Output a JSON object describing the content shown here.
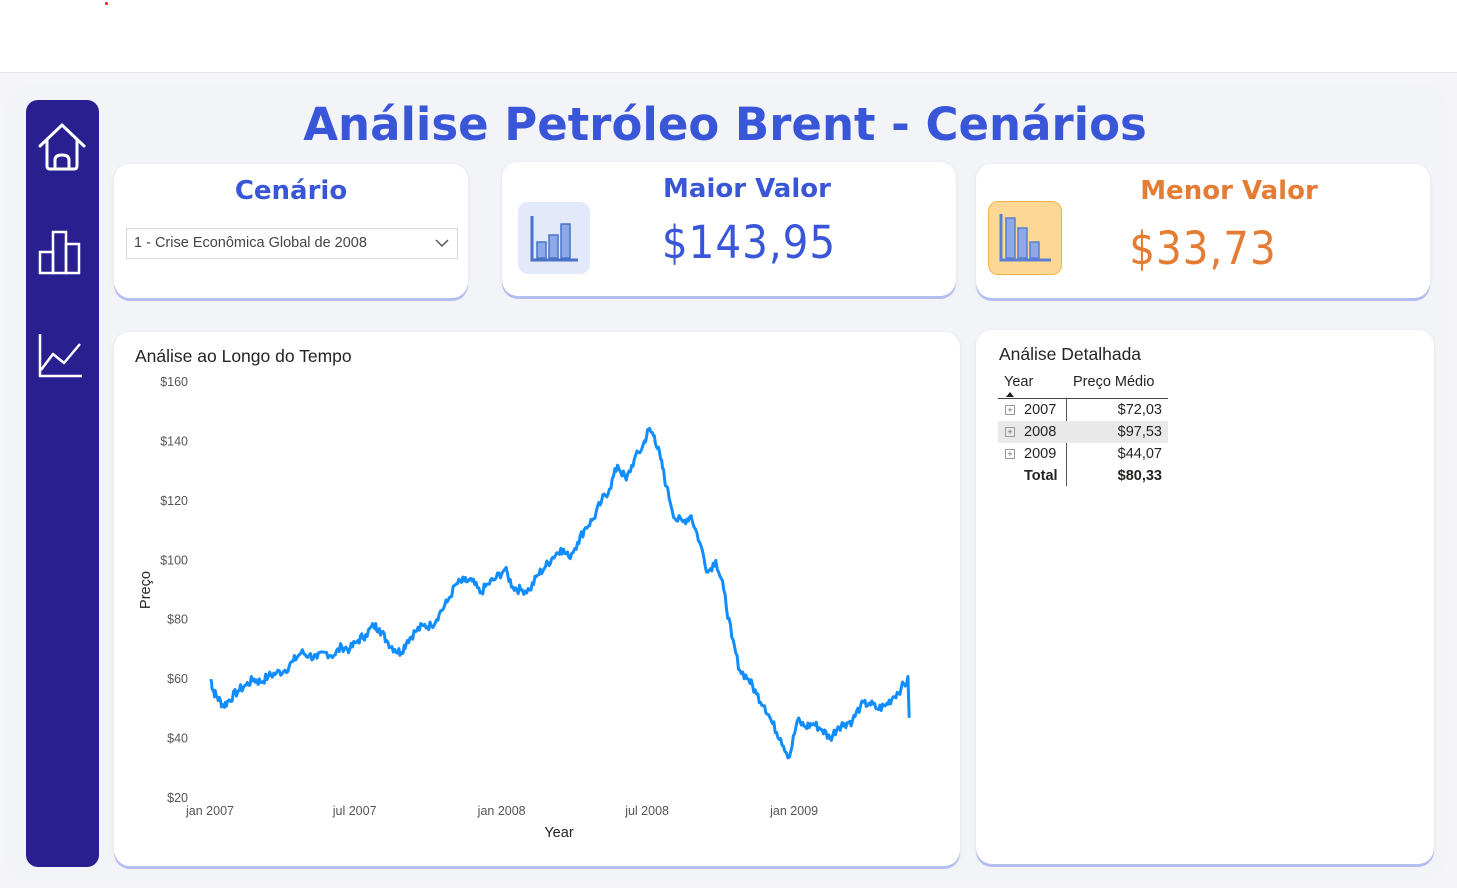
{
  "title": "Análise Petróleo Brent - Cenários",
  "colors": {
    "accent": "#3a56d8",
    "sidebar": "#2a1f8f",
    "orange": "#e57c34",
    "line": "#118dff"
  },
  "nav": {
    "items": [
      {
        "name": "home-icon"
      },
      {
        "name": "bar-chart-icon"
      },
      {
        "name": "line-chart-icon"
      }
    ]
  },
  "scenario": {
    "label": "Cenário",
    "selected": "1 - Crise Econômica Global de 2008"
  },
  "max_value": {
    "label": "Maior Valor",
    "value": "$143,95",
    "icon": "bar-chart-icon"
  },
  "min_value": {
    "label": "Menor Valor",
    "value": "$33,73",
    "icon": "bar-chart-icon"
  },
  "line_panel": {
    "title": "Análise ao Longo do Tempo"
  },
  "table_panel": {
    "title": "Análise Detalhada",
    "headers": {
      "year": "Year",
      "price": "Preço Médio"
    },
    "rows": [
      {
        "year": "2007",
        "value": "$72,03"
      },
      {
        "year": "2008",
        "value": "$97,53"
      },
      {
        "year": "2009",
        "value": "$44,07"
      }
    ],
    "total": {
      "label": "Total",
      "value": "$80,33"
    }
  },
  "chart_data": {
    "type": "line",
    "title": "Análise ao Longo do Tempo",
    "xlabel": "Year",
    "ylabel": "Preço",
    "y_ticks": [
      "$160",
      "$140",
      "$120",
      "$100",
      "$80",
      "$60",
      "$40",
      "$20"
    ],
    "x_ticks": [
      "jan 2007",
      "jul 2007",
      "jan 2008",
      "jul 2008",
      "jan 2009"
    ],
    "ylim": [
      20,
      160
    ],
    "x_range": [
      "2007-01-01",
      "2009-05-31"
    ],
    "series": [
      {
        "values": [
          [
            "2007-01-02",
            60
          ],
          [
            "2007-01-05",
            56
          ],
          [
            "2007-01-10",
            54
          ],
          [
            "2007-01-18",
            51
          ],
          [
            "2007-01-25",
            53
          ],
          [
            "2007-02-05",
            56
          ],
          [
            "2007-02-15",
            58
          ],
          [
            "2007-02-25",
            60
          ],
          [
            "2007-03-05",
            59
          ],
          [
            "2007-03-15",
            61
          ],
          [
            "2007-03-25",
            62
          ],
          [
            "2007-04-05",
            63
          ],
          [
            "2007-04-15",
            66
          ],
          [
            "2007-04-25",
            69
          ],
          [
            "2007-05-05",
            68
          ],
          [
            "2007-05-15",
            67
          ],
          [
            "2007-05-25",
            69
          ],
          [
            "2007-06-05",
            68
          ],
          [
            "2007-06-15",
            71
          ],
          [
            "2007-06-25",
            70
          ],
          [
            "2007-07-05",
            73
          ],
          [
            "2007-07-15",
            75
          ],
          [
            "2007-07-25",
            78
          ],
          [
            "2007-08-01",
            77
          ],
          [
            "2007-08-10",
            73
          ],
          [
            "2007-08-20",
            70
          ],
          [
            "2007-08-28",
            69
          ],
          [
            "2007-09-05",
            73
          ],
          [
            "2007-09-15",
            76
          ],
          [
            "2007-09-25",
            78
          ],
          [
            "2007-10-05",
            78
          ],
          [
            "2007-10-15",
            82
          ],
          [
            "2007-10-25",
            86
          ],
          [
            "2007-11-05",
            92
          ],
          [
            "2007-11-15",
            93
          ],
          [
            "2007-11-25",
            93
          ],
          [
            "2007-12-05",
            89
          ],
          [
            "2007-12-15",
            92
          ],
          [
            "2007-12-25",
            94
          ],
          [
            "2008-01-05",
            97
          ],
          [
            "2008-01-15",
            91
          ],
          [
            "2008-01-25",
            90
          ],
          [
            "2008-02-05",
            90
          ],
          [
            "2008-02-15",
            95
          ],
          [
            "2008-02-25",
            98
          ],
          [
            "2008-03-05",
            101
          ],
          [
            "2008-03-15",
            104
          ],
          [
            "2008-03-25",
            101
          ],
          [
            "2008-04-05",
            106
          ],
          [
            "2008-04-15",
            111
          ],
          [
            "2008-04-25",
            114
          ],
          [
            "2008-05-05",
            120
          ],
          [
            "2008-05-15",
            124
          ],
          [
            "2008-05-25",
            132
          ],
          [
            "2008-06-05",
            127
          ],
          [
            "2008-06-15",
            134
          ],
          [
            "2008-06-25",
            138
          ],
          [
            "2008-07-03",
            143.95
          ],
          [
            "2008-07-10",
            142
          ],
          [
            "2008-07-18",
            134
          ],
          [
            "2008-07-25",
            125
          ],
          [
            "2008-08-05",
            114
          ],
          [
            "2008-08-15",
            113
          ],
          [
            "2008-08-25",
            115
          ],
          [
            "2008-09-05",
            106
          ],
          [
            "2008-09-15",
            96
          ],
          [
            "2008-09-25",
            100
          ],
          [
            "2008-10-05",
            90
          ],
          [
            "2008-10-15",
            74
          ],
          [
            "2008-10-25",
            63
          ],
          [
            "2008-11-05",
            60
          ],
          [
            "2008-11-15",
            55
          ],
          [
            "2008-11-25",
            51
          ],
          [
            "2008-12-05",
            45
          ],
          [
            "2008-12-15",
            40
          ],
          [
            "2008-12-26",
            33.73
          ],
          [
            "2009-01-05",
            46
          ],
          [
            "2009-01-15",
            44
          ],
          [
            "2009-01-25",
            45
          ],
          [
            "2009-02-05",
            43
          ],
          [
            "2009-02-15",
            40
          ],
          [
            "2009-02-25",
            44
          ],
          [
            "2009-03-05",
            45
          ],
          [
            "2009-03-15",
            46
          ],
          [
            "2009-03-25",
            51
          ],
          [
            "2009-04-05",
            52
          ],
          [
            "2009-04-15",
            50
          ],
          [
            "2009-04-25",
            51
          ],
          [
            "2009-05-05",
            54
          ],
          [
            "2009-05-15",
            57
          ],
          [
            "2009-05-25",
            60
          ]
        ]
      }
    ]
  }
}
